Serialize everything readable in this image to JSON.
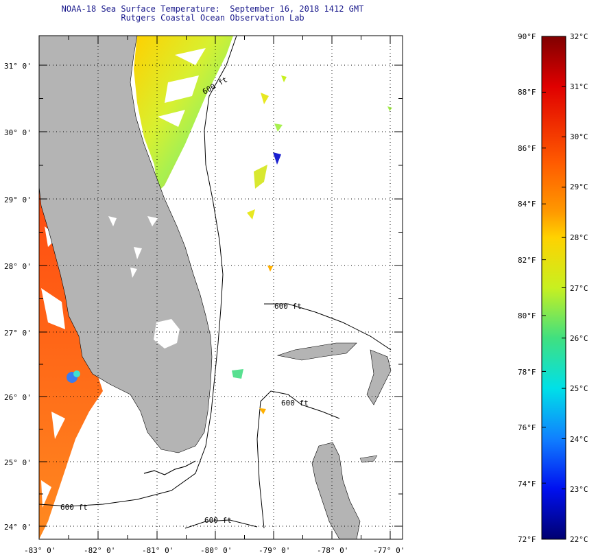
{
  "title": {
    "line1": "NOAA-18 Sea Surface Temperature:  September 16, 2018 1412 GMT",
    "line2": "Rutgers Coastal Ocean Observation Lab"
  },
  "axes": {
    "lon_labels": [
      "-83° 0'",
      "-82° 0'",
      "-81° 0'",
      "-80° 0'",
      "-79° 0'",
      "-78° 0'",
      "-77° 0'"
    ],
    "lat_labels": [
      "31° 0'",
      "30° 0'",
      "29° 0'",
      "28° 0'",
      "27° 0'",
      "26° 0'",
      "25° 0'",
      "24° 0'"
    ]
  },
  "contours": {
    "labels": [
      "600 ft",
      "600 ft",
      "600 ft",
      "600 ft",
      "600 ft"
    ]
  },
  "colorbar": {
    "fahrenheit_labels": [
      "90°F",
      "88°F",
      "86°F",
      "84°F",
      "82°F",
      "80°F",
      "78°F",
      "76°F",
      "74°F",
      "72°F"
    ],
    "celsius_labels": [
      "32°C",
      "31°C",
      "30°C",
      "29°C",
      "28°C",
      "27°C",
      "26°C",
      "25°C",
      "24°C",
      "23°C",
      "22°C"
    ]
  },
  "colors": {
    "land": "#b4b4b4",
    "title": "#1a1a8c",
    "warm_water": "#ff6a10",
    "mid_water": "#e8e820",
    "cool_water": "#2040ff"
  }
}
